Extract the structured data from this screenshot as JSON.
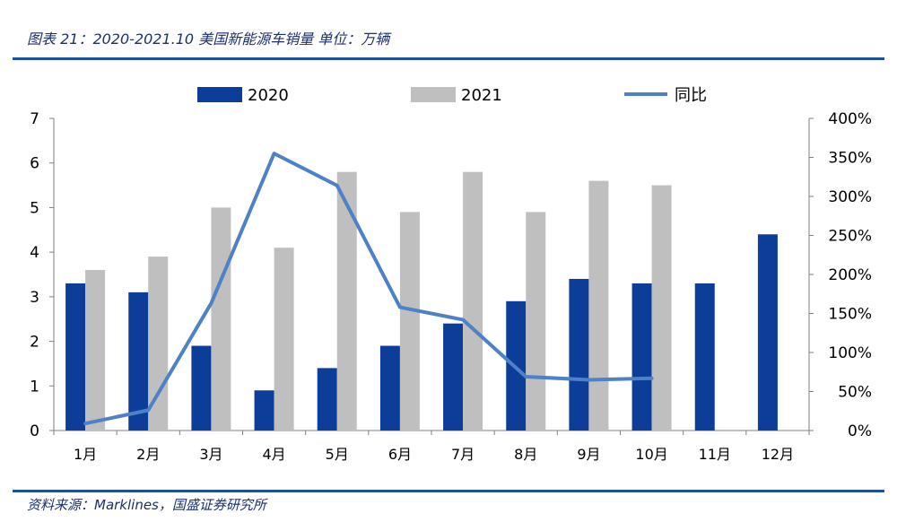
{
  "header": {
    "title": "图表 21：2020-2021.10 美国新能源车销量 单位：万辆"
  },
  "footer": {
    "source": "资料来源：Marklines，国盛证券研究所"
  },
  "colors": {
    "series2020": "#0b3d99",
    "series2021": "#bfbfbf",
    "yoy_line": "#4f81c7",
    "rule": "#1d4ea8",
    "title": "#1b2f6e"
  },
  "chart_data": {
    "type": "bar",
    "categories": [
      "1月",
      "2月",
      "3月",
      "4月",
      "5月",
      "6月",
      "7月",
      "8月",
      "9月",
      "10月",
      "11月",
      "12月"
    ],
    "series": [
      {
        "name": "2020",
        "type": "bar",
        "axis": "left",
        "values": [
          3.3,
          3.1,
          1.9,
          0.9,
          1.4,
          1.9,
          2.4,
          2.9,
          3.4,
          3.3,
          3.3,
          4.4
        ]
      },
      {
        "name": "2021",
        "type": "bar",
        "axis": "left",
        "values": [
          3.6,
          3.9,
          5.0,
          4.1,
          5.8,
          4.9,
          5.8,
          4.9,
          5.6,
          5.5,
          null,
          null
        ]
      },
      {
        "name": "同比",
        "type": "line",
        "axis": "right",
        "values": [
          0.09,
          0.26,
          1.63,
          3.55,
          3.14,
          1.58,
          1.42,
          0.69,
          0.65,
          0.67,
          null,
          null
        ]
      }
    ],
    "y_left": {
      "min": 0,
      "max": 7,
      "ticks": [
        "0",
        "1",
        "2",
        "3",
        "4",
        "5",
        "6",
        "7"
      ]
    },
    "y_right": {
      "min": 0,
      "max": 4,
      "ticks": [
        "0%",
        "50%",
        "100%",
        "150%",
        "200%",
        "250%",
        "300%",
        "350%",
        "400%"
      ]
    },
    "legend": {
      "position": "top",
      "items": [
        "2020",
        "2021",
        "同比"
      ]
    },
    "grid": false
  }
}
